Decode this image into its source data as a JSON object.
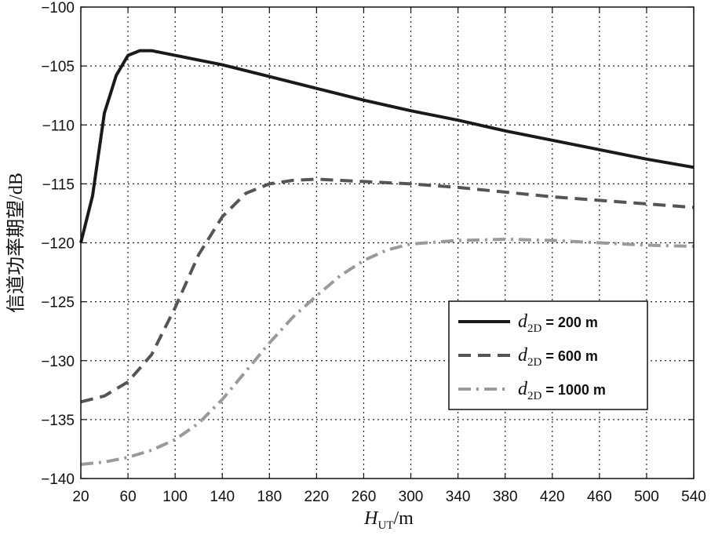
{
  "chart_data": {
    "type": "line",
    "xlabel": {
      "symbol": "H",
      "subscript": "UT",
      "unit": "/m"
    },
    "ylabel": "信道功率期望/dB",
    "xlim": [
      20,
      540
    ],
    "ylim": [
      -140,
      -100
    ],
    "x_ticks": [
      20,
      60,
      100,
      140,
      180,
      220,
      260,
      300,
      340,
      380,
      420,
      460,
      500,
      540
    ],
    "y_ticks": [
      -100,
      -105,
      -110,
      -115,
      -120,
      -125,
      -130,
      -135,
      -140
    ],
    "grid": true,
    "legend_position": "lower-right",
    "series": [
      {
        "name": "d2D = 200 m",
        "legend": {
          "symbol": "d",
          "subscript": "2D",
          "text": " = 200 m"
        },
        "style": "solid",
        "color": "#1a1a1a",
        "x": [
          20,
          30,
          40,
          50,
          60,
          70,
          80,
          100,
          140,
          180,
          220,
          260,
          300,
          340,
          380,
          420,
          460,
          500,
          540
        ],
        "y": [
          -120,
          -116,
          -109,
          -105.8,
          -104.1,
          -103.7,
          -103.7,
          -104.1,
          -104.9,
          -105.9,
          -106.9,
          -107.9,
          -108.8,
          -109.6,
          -110.5,
          -111.3,
          -112.1,
          -112.9,
          -113.6
        ]
      },
      {
        "name": "d2D = 600 m",
        "legend": {
          "symbol": "d",
          "subscript": "2D",
          "text": " = 600 m"
        },
        "style": "dashed",
        "color": "#555555",
        "x": [
          20,
          40,
          60,
          80,
          100,
          120,
          140,
          160,
          180,
          200,
          220,
          260,
          300,
          340,
          380,
          420,
          460,
          500,
          540
        ],
        "y": [
          -133.5,
          -133,
          -131.8,
          -129.5,
          -125.5,
          -121,
          -117.8,
          -115.8,
          -115,
          -114.7,
          -114.6,
          -114.8,
          -115,
          -115.3,
          -115.7,
          -116.1,
          -116.4,
          -116.7,
          -117
        ]
      },
      {
        "name": "d2D = 1000 m",
        "legend": {
          "symbol": "d",
          "subscript": "2D",
          "text": " = 1000 m"
        },
        "style": "dashdot",
        "color": "#9a9a9a",
        "x": [
          20,
          40,
          60,
          80,
          100,
          120,
          140,
          160,
          180,
          200,
          220,
          240,
          260,
          280,
          300,
          340,
          380,
          420,
          460,
          500,
          540
        ],
        "y": [
          -138.8,
          -138.6,
          -138.2,
          -137.6,
          -136.7,
          -135.3,
          -133.3,
          -130.9,
          -128.5,
          -126.3,
          -124.5,
          -122.8,
          -121.5,
          -120.6,
          -120.1,
          -119.8,
          -119.7,
          -119.8,
          -120,
          -120.2,
          -120.3
        ]
      }
    ]
  }
}
